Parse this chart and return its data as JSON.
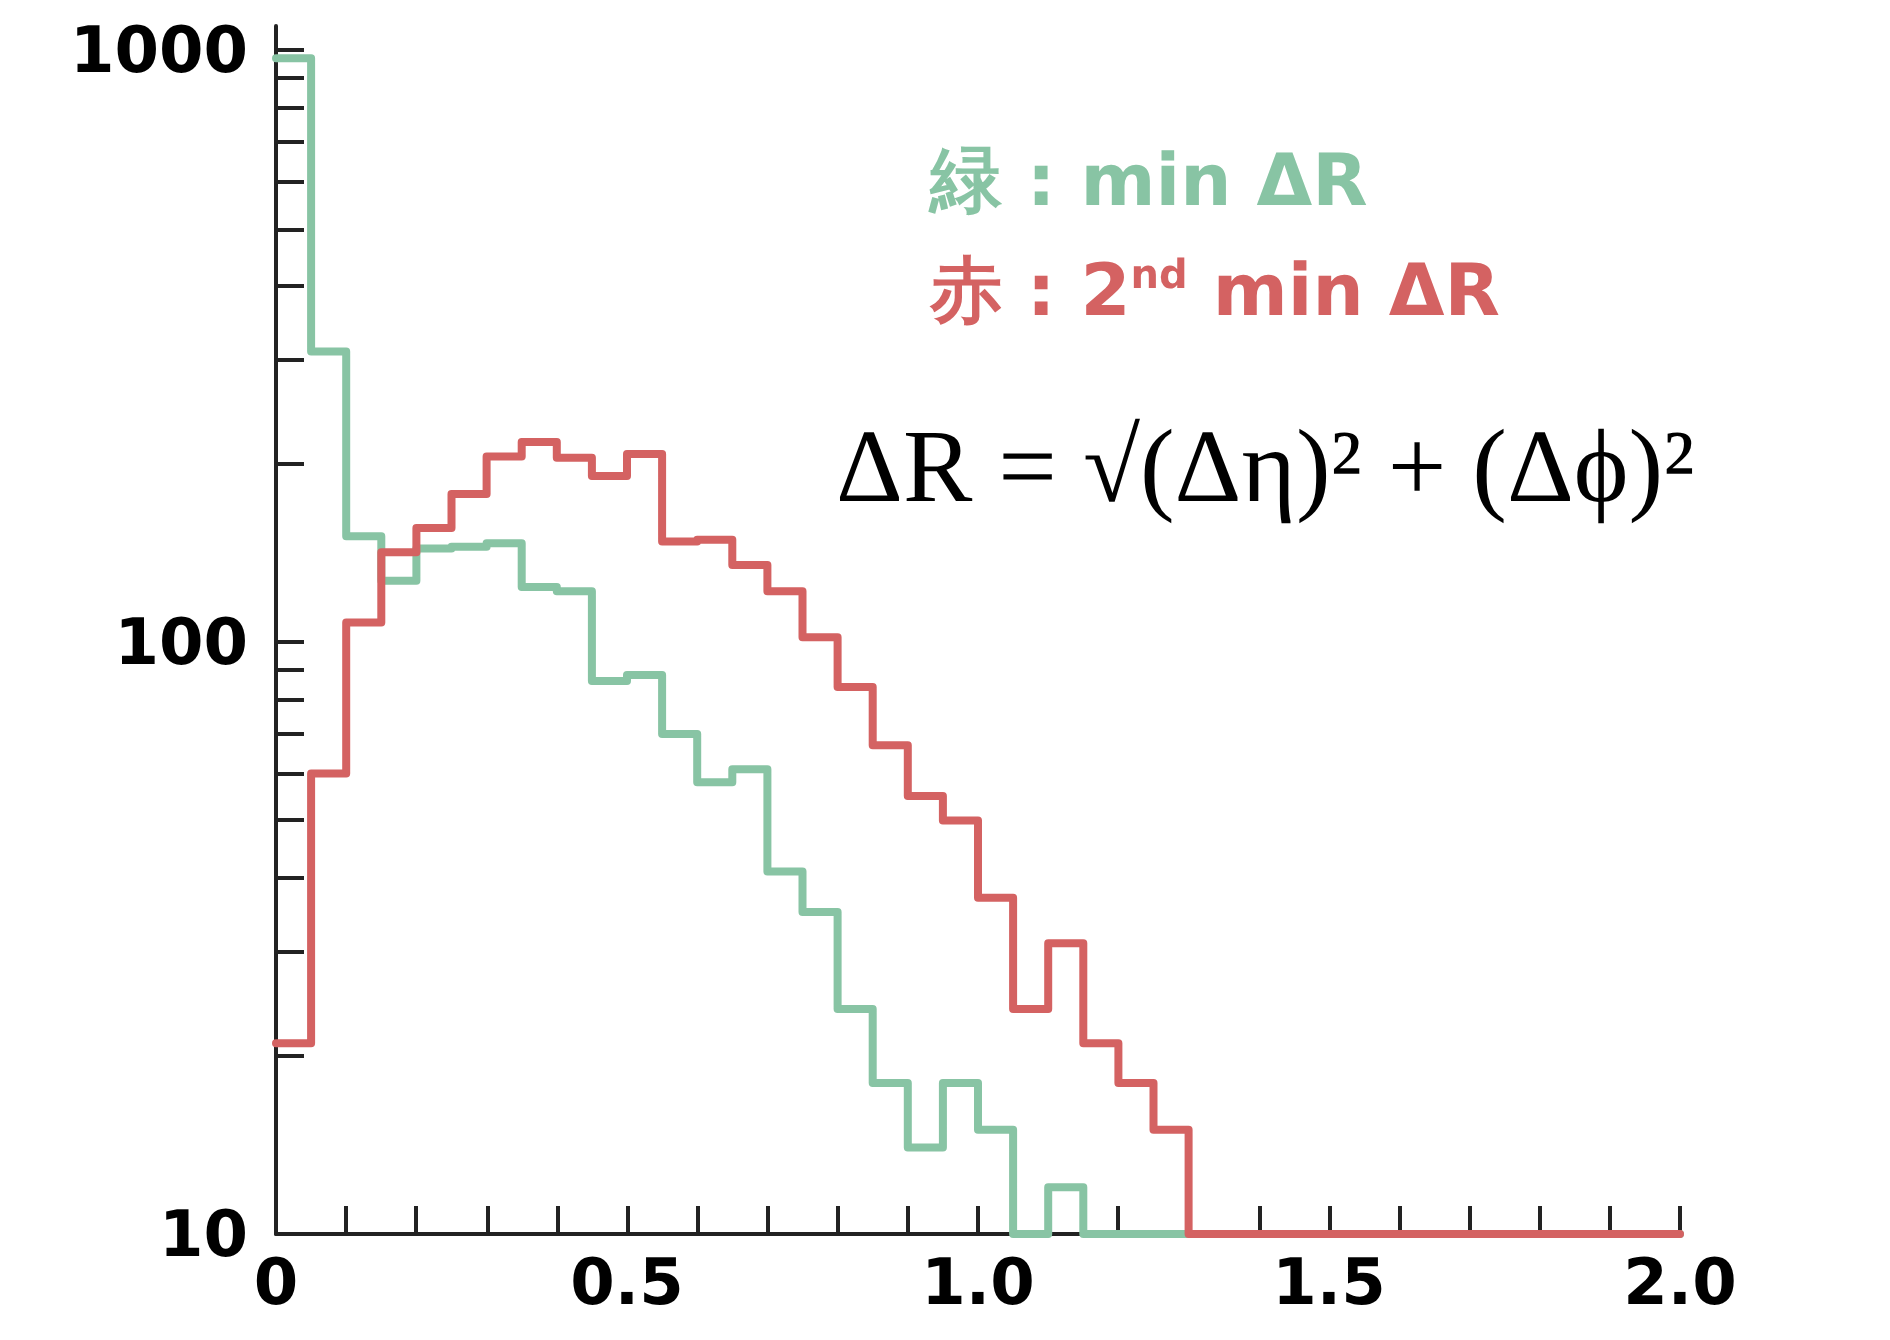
{
  "chart_data": {
    "type": "histogram",
    "bins": [
      0,
      0.05,
      0.1,
      0.15,
      0.2,
      0.25,
      0.3,
      0.35,
      0.4,
      0.45,
      0.5,
      0.55,
      0.6,
      0.65,
      0.7,
      0.75,
      0.8,
      0.85,
      0.9,
      0.95,
      1.0,
      1.05,
      1.1,
      1.15,
      1.2,
      1.25,
      1.3,
      1.35,
      1.4,
      1.45,
      1.5,
      1.55,
      1.6,
      1.65,
      1.7,
      1.75,
      1.8,
      1.85,
      1.9,
      1.95,
      2.0
    ],
    "series": [
      {
        "name": "緑 : min ΔR",
        "color": "#88c4a4",
        "values": [
          970,
          310,
          151,
          127,
          144,
          145,
          147,
          124,
          122,
          86,
          88,
          70,
          58,
          61,
          41,
          35,
          24,
          18,
          14,
          18,
          15,
          10,
          12,
          10,
          10,
          10,
          10,
          10,
          10,
          10,
          10,
          10,
          10,
          10,
          10,
          10,
          10,
          10,
          10,
          10
        ]
      },
      {
        "name": "赤 : 2$^{nd}$ min ΔR",
        "color": "#d46262",
        "values": [
          21,
          60,
          108,
          142,
          156,
          178,
          206,
          218,
          205,
          191,
          208,
          148,
          149,
          135,
          122,
          102,
          84,
          67,
          55,
          50,
          37,
          24,
          31,
          21,
          18,
          15,
          10,
          10,
          10,
          10,
          10,
          10,
          10,
          10,
          10,
          10,
          10,
          10,
          10,
          10
        ]
      }
    ],
    "log": "y",
    "xlim": [
      0,
      2.0
    ],
    "xticks": [
      0,
      {
        "value": 0.1,
        "label": null
      },
      {
        "value": 0.2,
        "label": null
      },
      {
        "value": 0.3,
        "label": null
      },
      {
        "value": 0.4,
        "label": null
      },
      0.5,
      {
        "value": 0.6,
        "label": null
      },
      {
        "value": 0.7,
        "label": null
      },
      {
        "value": 0.8,
        "label": null
      },
      {
        "value": 0.9,
        "label": null
      },
      {
        "value": 1.0,
        "label": "1.0"
      },
      {
        "value": 1.1,
        "label": null
      },
      {
        "value": 1.2,
        "label": null
      },
      {
        "value": 1.3,
        "label": null
      },
      {
        "value": 1.4,
        "label": null
      },
      1.5,
      {
        "value": 1.6,
        "label": null
      },
      {
        "value": 1.7,
        "label": null
      },
      {
        "value": 1.8,
        "label": null
      },
      {
        "value": 1.9,
        "label": null
      },
      {
        "value": 2.0,
        "label": "2.0"
      }
    ],
    "ylim": [
      10,
      1100
    ],
    "yticks": [
      10,
      {
        "value": 20,
        "label": null
      },
      {
        "value": 30,
        "label": null
      },
      {
        "value": 40,
        "label": null
      },
      {
        "value": 50,
        "label": null
      },
      {
        "value": 60,
        "label": null
      },
      {
        "value": 70,
        "label": null
      },
      {
        "value": 80,
        "label": null
      },
      {
        "value": 90,
        "label": null
      },
      100,
      {
        "value": 200,
        "label": null
      },
      {
        "value": 300,
        "label": null
      },
      {
        "value": 400,
        "label": null
      },
      {
        "value": 500,
        "label": null
      },
      {
        "value": 600,
        "label": null
      },
      {
        "value": 700,
        "label": null
      },
      {
        "value": 800,
        "label": null
      },
      {
        "value": 900,
        "label": null
      },
      1000
    ],
    "legend": "top right",
    "annotations": [
      "ΔR = √(Δη)² + (Δϕ)²"
    ]
  }
}
